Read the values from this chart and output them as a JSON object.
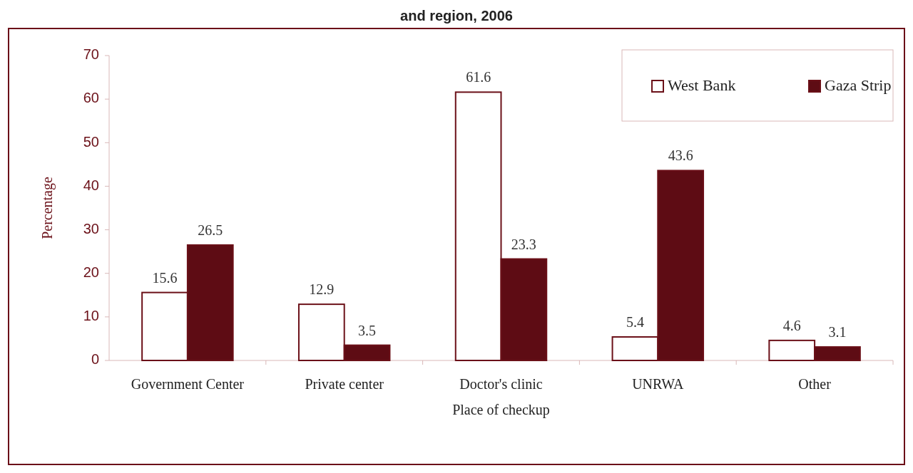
{
  "chart_data": {
    "type": "bar",
    "title": "and region, 2006",
    "xlabel": "Place of checkup",
    "ylabel": "Percentage",
    "categories": [
      "Government Center",
      "Private center",
      "Doctor's clinic",
      "UNRWA",
      "Other"
    ],
    "series": [
      {
        "name": "West Bank",
        "color": "#ffffff",
        "values": [
          15.6,
          12.9,
          61.6,
          5.4,
          4.6
        ]
      },
      {
        "name": "Gaza Strip",
        "color": "#5e0c14",
        "values": [
          26.5,
          3.5,
          23.3,
          43.6,
          3.1
        ]
      }
    ],
    "ylim": [
      0,
      70
    ],
    "yticks": [
      0,
      10,
      20,
      30,
      40,
      50,
      60,
      70
    ],
    "data_labels": true,
    "legend": "top right",
    "grid": false
  }
}
